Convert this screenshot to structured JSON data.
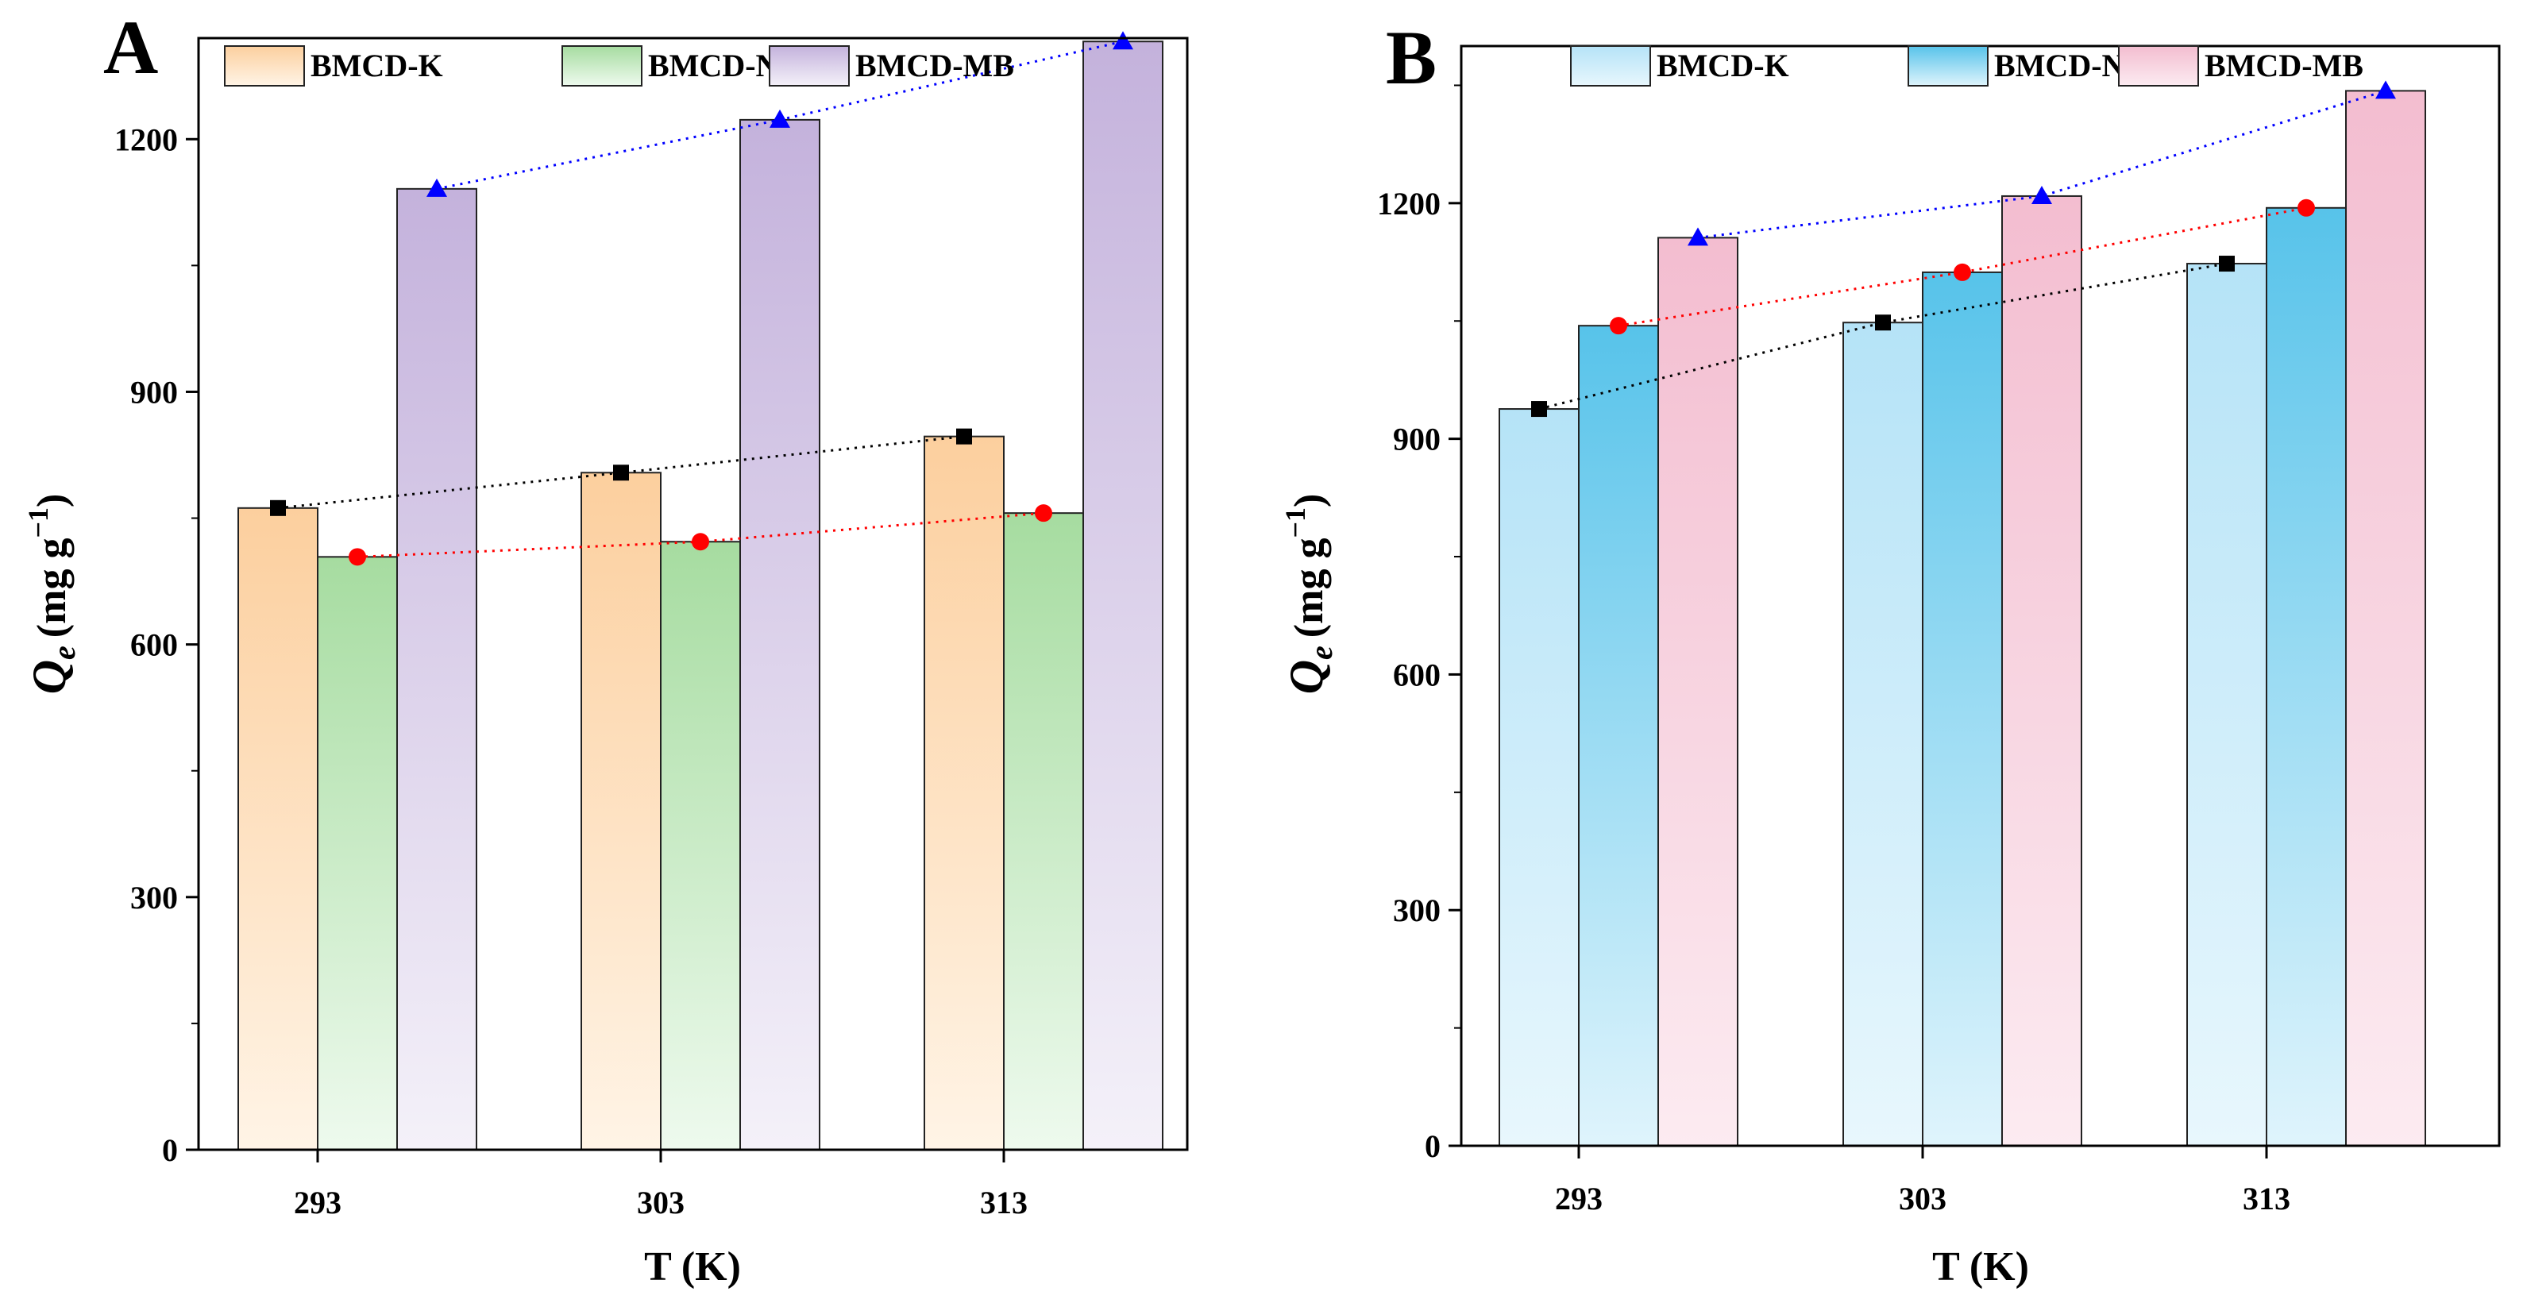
{
  "chart_data": [
    {
      "type": "bar",
      "panel_label": "A",
      "categories": [
        "293",
        "303",
        "313"
      ],
      "xlabel": "T (K)",
      "ylabel": {
        "symbol": "Q",
        "subscript": "e",
        "unit_prefix": "(mg g",
        "unit_exponent": "−1",
        "unit_suffix": ")"
      },
      "ylim": [
        0,
        1320
      ],
      "yticks": [
        0,
        300,
        600,
        900,
        1200
      ],
      "tick_labels_y": [
        "0",
        "300",
        "600",
        "900",
        "1200"
      ],
      "legend_position": "top",
      "series": [
        {
          "name": "BMCD-K",
          "values": [
            762,
            804,
            847
          ],
          "marker": "square",
          "marker_color": "#000000",
          "line_color": "#000000",
          "fill_top": "#fccf9e",
          "fill_bottom": "#fff4e6"
        },
        {
          "name": "BMCD-Na",
          "values": [
            704,
            722,
            756
          ],
          "marker": "circle",
          "marker_color": "#ff0000",
          "line_color": "#ff0000",
          "fill_top": "#a6dca0",
          "fill_bottom": "#eefaee"
        },
        {
          "name": "BMCD-MB",
          "values": [
            1141,
            1223,
            1316
          ],
          "marker": "triangle",
          "marker_color": "#0000ff",
          "line_color": "#0000ff",
          "fill_top": "#c4b2dc",
          "fill_bottom": "#f4f1f9"
        }
      ]
    },
    {
      "type": "bar",
      "panel_label": "B",
      "categories": [
        "293",
        "303",
        "313"
      ],
      "xlabel": "T (K)",
      "ylabel": {
        "symbol": "Q",
        "subscript": "e",
        "unit_prefix": "(mg g",
        "unit_exponent": "−1",
        "unit_suffix": ")"
      },
      "ylim": [
        0,
        1400
      ],
      "yticks": [
        0,
        300,
        600,
        900,
        1200
      ],
      "tick_labels_y": [
        "0",
        "300",
        "600",
        "900",
        "1200"
      ],
      "legend_position": "top",
      "series": [
        {
          "name": "BMCD-K",
          "values": [
            938,
            1048,
            1123
          ],
          "marker": "square",
          "marker_color": "#000000",
          "line_color": "#000000",
          "fill_top": "#b5e3f7",
          "fill_bottom": "#e8f7fd"
        },
        {
          "name": "BMCD-Na",
          "values": [
            1044,
            1112,
            1194
          ],
          "marker": "circle",
          "marker_color": "#ff0000",
          "line_color": "#ff0000",
          "fill_top": "#57c3ea",
          "fill_bottom": "#dff4fc"
        },
        {
          "name": "BMCD-MB",
          "values": [
            1156,
            1209,
            1343
          ],
          "marker": "triangle",
          "marker_color": "#0000ff",
          "line_color": "#0000ff",
          "fill_top": "#f3bdd0",
          "fill_bottom": "#fcebf1"
        }
      ]
    }
  ]
}
